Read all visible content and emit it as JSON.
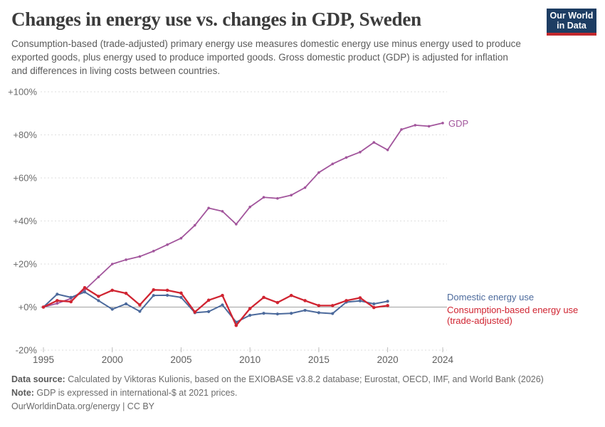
{
  "header": {
    "title": "Changes in energy use vs. changes in GDP, Sweden",
    "subtitle": "Consumption-based (trade-adjusted) primary energy use measures domestic energy use minus energy used to produce exported goods, plus energy used to produce imported goods. Gross domestic product (GDP) is adjusted for inflation and differences in living costs between countries.",
    "logo": {
      "line1": "Our World",
      "line2": "in Data"
    }
  },
  "chart_data": {
    "type": "line",
    "title": "Changes in energy use vs. changes in GDP, Sweden",
    "xlabel": "",
    "ylabel": "",
    "ylim": [
      -20,
      100
    ],
    "xlim": [
      1995,
      2024
    ],
    "grid": "horizontal-dashed",
    "legend_position": "right-of-line-ends",
    "y_ticks": [
      {
        "value": 100,
        "label": "+100%"
      },
      {
        "value": 80,
        "label": "+80%"
      },
      {
        "value": 60,
        "label": "+60%"
      },
      {
        "value": 40,
        "label": "+40%"
      },
      {
        "value": 20,
        "label": "+20%"
      },
      {
        "value": 0,
        "label": "+0%"
      },
      {
        "value": -20,
        "label": "-20%"
      }
    ],
    "x_ticks": [
      {
        "value": 1995,
        "label": "1995"
      },
      {
        "value": 2000,
        "label": "2000"
      },
      {
        "value": 2005,
        "label": "2005"
      },
      {
        "value": 2010,
        "label": "2010"
      },
      {
        "value": 2015,
        "label": "2015"
      },
      {
        "value": 2020,
        "label": "2020"
      },
      {
        "value": 2024,
        "label": "2024"
      }
    ],
    "series": [
      {
        "name": "GDP",
        "color": "#a2559c",
        "line_width": 1.8,
        "marker_r": 1.8,
        "x": [
          1995,
          1996,
          1997,
          1998,
          1999,
          2000,
          2001,
          2002,
          2003,
          2004,
          2005,
          2006,
          2007,
          2008,
          2009,
          2010,
          2011,
          2012,
          2013,
          2014,
          2015,
          2016,
          2017,
          2018,
          2019,
          2020,
          2021,
          2022,
          2023,
          2024
        ],
        "y": [
          0,
          1.7,
          4,
          8,
          14,
          20,
          22,
          23.5,
          26,
          29,
          32,
          38,
          46,
          44.5,
          38.5,
          46.5,
          51,
          50.5,
          52,
          55.5,
          62.5,
          66.5,
          69.5,
          72,
          76.5,
          73,
          82.5,
          84.5,
          84,
          85.5
        ]
      },
      {
        "name": "Domestic energy use",
        "color": "#4c6a9c",
        "line_width": 2,
        "marker_r": 2.1,
        "x": [
          1995,
          1996,
          1997,
          1998,
          1999,
          2000,
          2001,
          2002,
          2003,
          2004,
          2005,
          2006,
          2007,
          2008,
          2009,
          2010,
          2011,
          2012,
          2013,
          2014,
          2015,
          2016,
          2017,
          2018,
          2019,
          2020
        ],
        "y": [
          0,
          6,
          4.5,
          7,
          3,
          -1,
          1.5,
          -2,
          5.4,
          5.5,
          4.5,
          -2.6,
          -2.1,
          1,
          -7,
          -3.8,
          -2.9,
          -3.2,
          -2.9,
          -1.5,
          -2.6,
          -3,
          2.3,
          2.9,
          1.5,
          2.7
        ]
      },
      {
        "name": "Consumption-based energy use (trade-adjusted)",
        "color": "#d02431",
        "line_width": 2.3,
        "marker_r": 2.3,
        "x": [
          1995,
          1996,
          1997,
          1998,
          1999,
          2000,
          2001,
          2002,
          2003,
          2004,
          2005,
          2006,
          2007,
          2008,
          2009,
          2010,
          2011,
          2012,
          2013,
          2014,
          2015,
          2016,
          2017,
          2018,
          2019,
          2020
        ],
        "y": [
          0,
          3,
          2.5,
          9,
          5,
          7.8,
          6.4,
          1,
          8,
          7.8,
          6.5,
          -2.3,
          3.2,
          5.4,
          -8.5,
          -0.7,
          4.5,
          2.1,
          5.4,
          3,
          0.7,
          0.7,
          3,
          4.3,
          -0.2,
          0.7
        ]
      }
    ]
  },
  "series_labels": {
    "gdp": "GDP",
    "domestic": "Domestic energy use",
    "consumption_line1": "Consumption-based energy use",
    "consumption_line2": "(trade-adjusted)"
  },
  "footer": {
    "data_source_label": "Data source:",
    "data_source_text": " Calculated by Viktoras Kulionis, based on the EXIOBASE v3.8.2 database; Eurostat, OECD, IMF, and World Bank (2026)",
    "note_label": "Note:",
    "note_text": " GDP is expressed in international-$ at 2021 prices.",
    "url": "OurWorldinData.org/energy | CC BY"
  },
  "colors": {
    "gdp": "#a2559c",
    "domestic_energy": "#4c6a9c",
    "consumption_energy": "#d02431",
    "logo_bg": "#1d3d63",
    "logo_accent": "#c2282d",
    "gridline": "#dedede",
    "zero_line": "#a1a1a1"
  }
}
